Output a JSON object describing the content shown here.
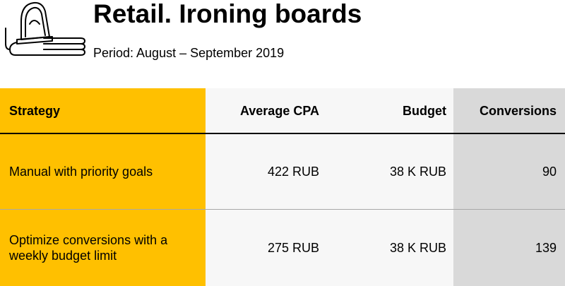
{
  "header": {
    "title": "Retail. Ironing boards",
    "period": "Period: August – September 2019",
    "icon": "iron-on-board-icon"
  },
  "colors": {
    "strategy_column": "#FFC000",
    "middle_columns": "#F7F7F7",
    "conversions_column": "#D9D9D9"
  },
  "table": {
    "columns": [
      "Strategy",
      "Average CPA",
      "Budget",
      "Conversions"
    ],
    "rows": [
      {
        "strategy": "Manual with priority goals",
        "cpa": "422 RUB",
        "budget": "38 K RUB",
        "conversions": "90"
      },
      {
        "strategy": "Optimize conversions with a weekly budget limit",
        "cpa": "275 RUB",
        "budget": "38 K RUB",
        "conversions": "139"
      }
    ]
  }
}
